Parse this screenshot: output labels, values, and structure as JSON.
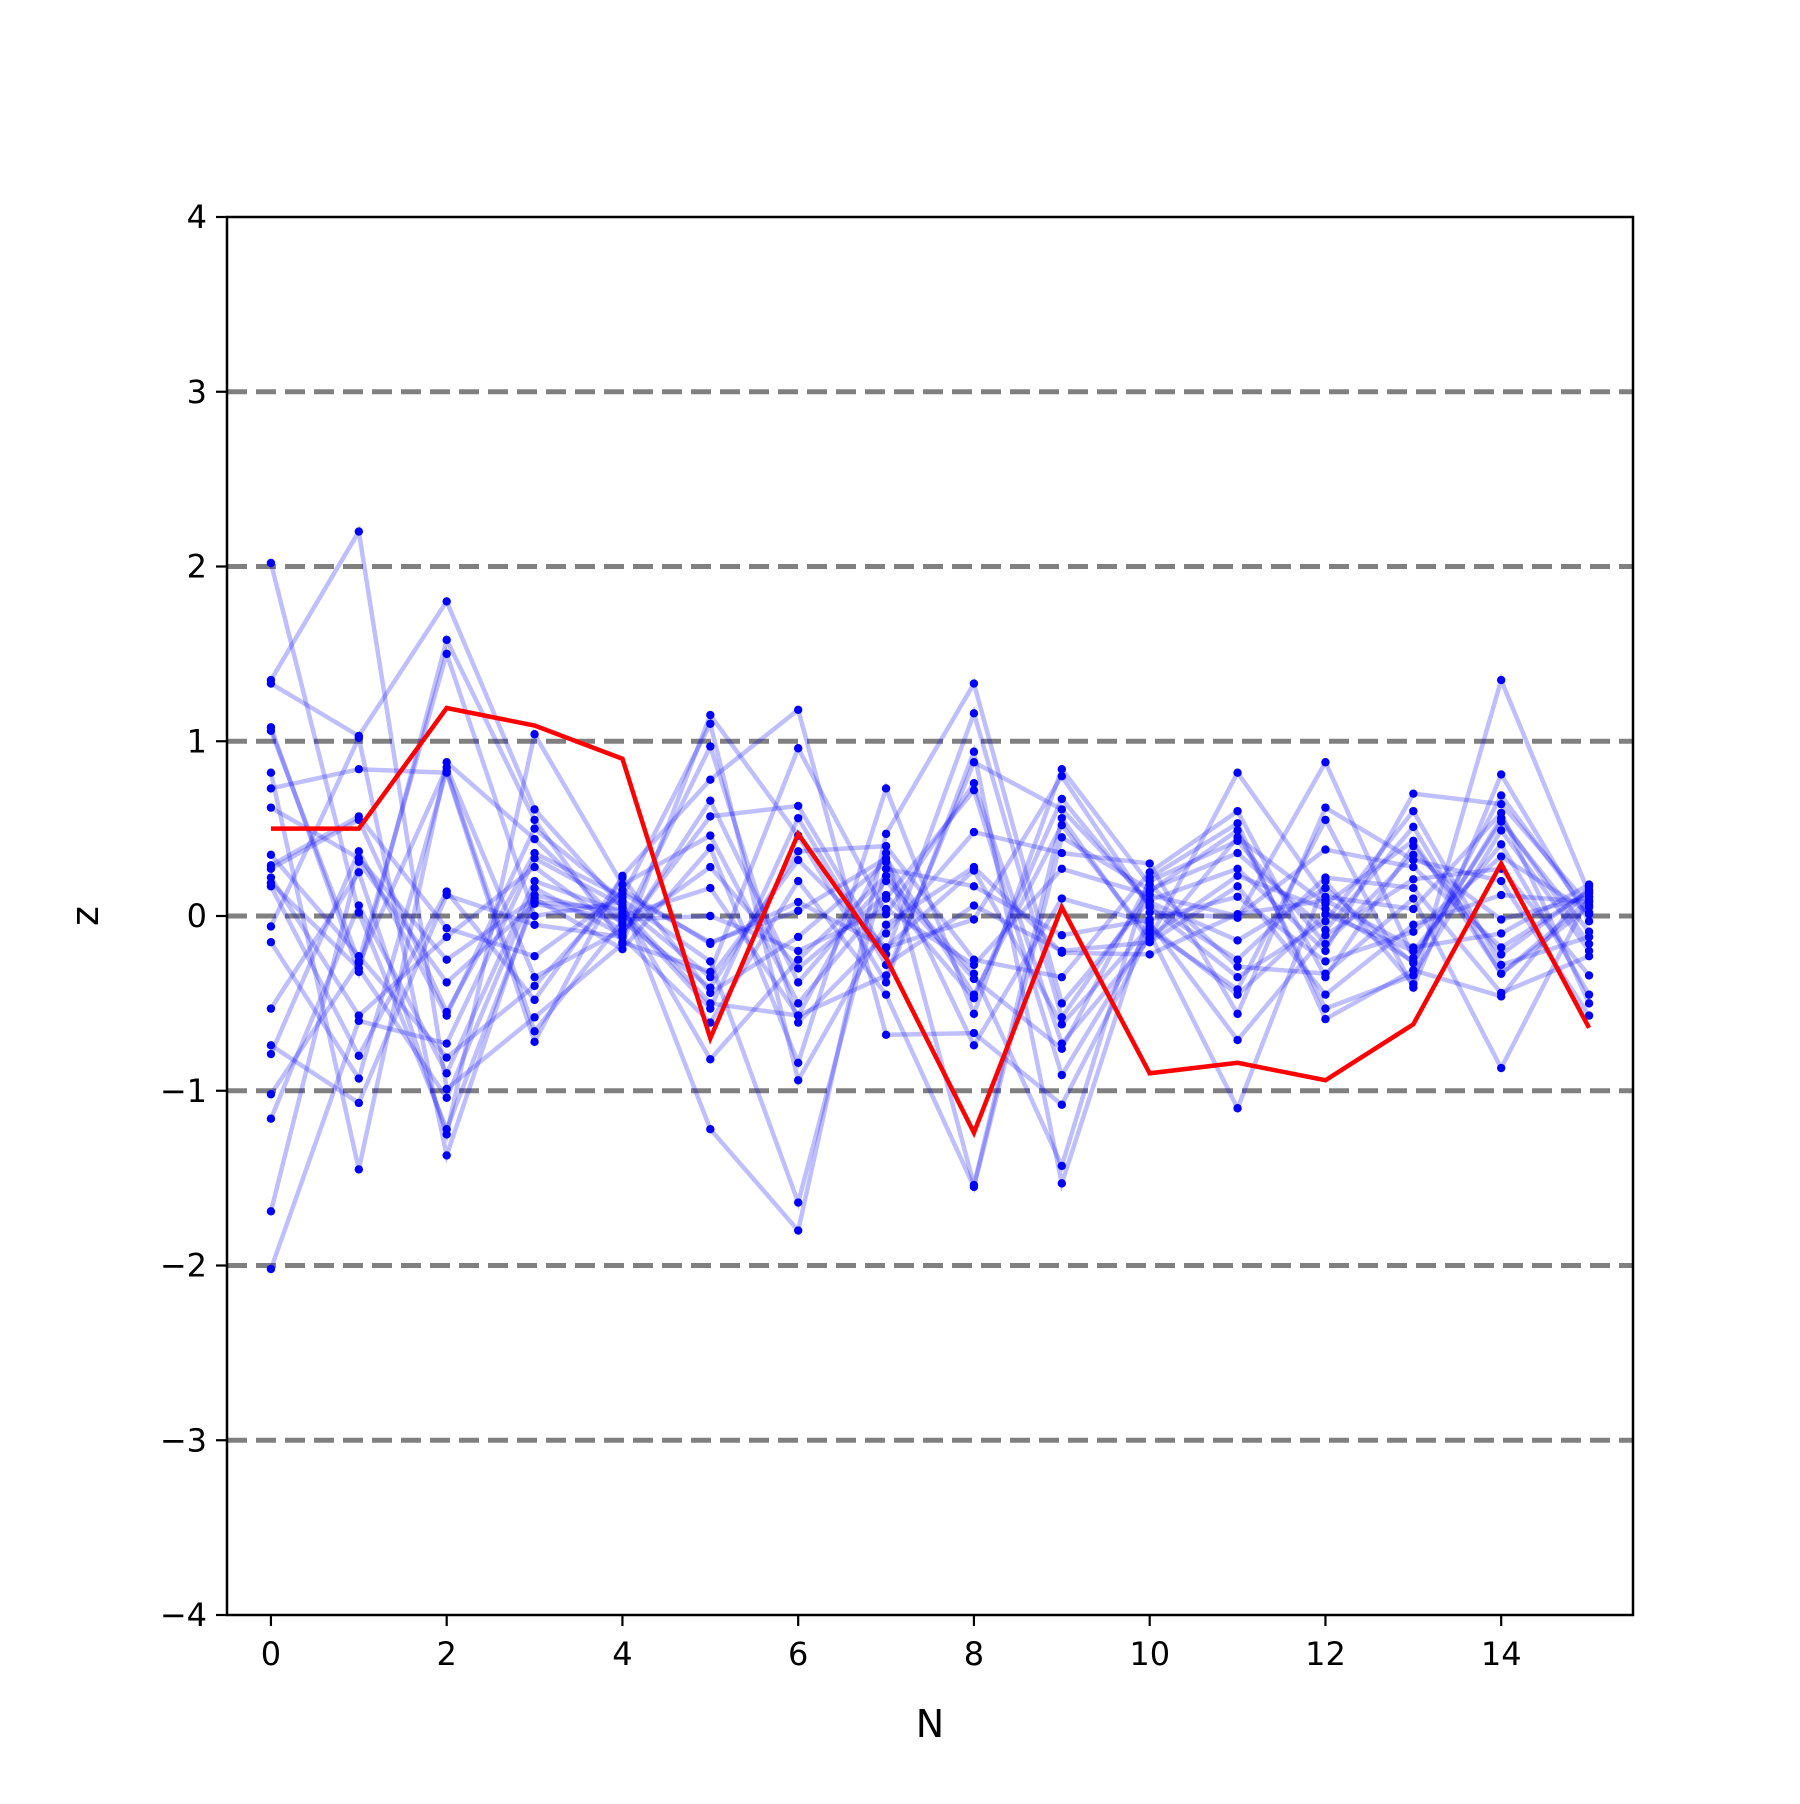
{
  "chart_data": {
    "type": "line",
    "title": "",
    "xlabel": "N",
    "ylabel": "z",
    "xlim": [
      -0.5,
      15.5
    ],
    "ylim": [
      -4,
      4
    ],
    "x_ticks": [
      0,
      2,
      4,
      6,
      8,
      10,
      12,
      14
    ],
    "x_tick_labels": [
      "0",
      "2",
      "4",
      "6",
      "8",
      "10",
      "12",
      "14"
    ],
    "y_ticks": [
      -4,
      -3,
      -2,
      -1,
      0,
      1,
      2,
      3,
      4
    ],
    "y_tick_labels": [
      "−4",
      "−3",
      "−2",
      "−1",
      "0",
      "1",
      "2",
      "3",
      "4"
    ],
    "reference_lines": [
      -3,
      -2,
      -1,
      0,
      1,
      2,
      3
    ],
    "grid": false,
    "legend": "none",
    "x": [
      0,
      1,
      2,
      3,
      4,
      5,
      6,
      7,
      8,
      9,
      10,
      11,
      12,
      13,
      14,
      15
    ],
    "highlight_series": {
      "values": [
        0.5,
        0.5,
        1.19,
        1.09,
        0.9,
        -0.7,
        0.47,
        -0.24,
        -1.24,
        0.05,
        -0.9,
        -0.84,
        -0.94,
        -0.62,
        0.3,
        -0.64
      ]
    },
    "background_series": [
      {
        "values": [
          2.02,
          0.02,
          -1.22,
          0.08,
          0.04,
          -0.5,
          -0.57,
          0.36,
          -1.54,
          0.56,
          -0.15,
          0.45,
          0.07,
          0.43,
          -0.33,
          0.05
        ]
      },
      {
        "values": [
          1.35,
          2.2,
          -0.99,
          -0.58,
          -0.16,
          1.15,
          0.46,
          -0.38,
          0.94,
          -1.53,
          0.02,
          -0.01,
          0.88,
          -0.24,
          0.54,
          -0.09
        ]
      },
      {
        "values": [
          1.33,
          1.03,
          1.8,
          0.61,
          0.05,
          -0.82,
          -0.25,
          0.23,
          -0.33,
          -1.43,
          0.22,
          0.53,
          -0.59,
          -0.31,
          -0.46,
          0.17
        ]
      },
      {
        "values": [
          1.08,
          -0.32,
          1.58,
          0.55,
          -0.15,
          -0.32,
          0.96,
          0.01,
          0.76,
          -0.73,
          -0.13,
          0.82,
          0.11,
          0.04,
          0.59,
          -0.5
        ]
      },
      {
        "values": [
          1.06,
          -0.26,
          1.5,
          0.0,
          0.08,
          -1.22,
          -1.8,
          0.47,
          1.33,
          -0.5,
          0.09,
          0.27,
          -0.2,
          0.7,
          0.64,
          0.06
        ]
      },
      {
        "values": [
          0.82,
          -1.45,
          0.88,
          0.44,
          -0.05,
          0.97,
          -0.61,
          -0.1,
          0.48,
          0.36,
          0.3,
          -0.56,
          0.62,
          0.32,
          0.2,
          -0.57
        ]
      },
      {
        "values": [
          0.73,
          0.84,
          0.82,
          -0.72,
          0.23,
          0.78,
          1.18,
          -0.68,
          -0.67,
          -1.08,
          -0.1,
          -1.1,
          0.2,
          -0.39,
          1.35,
          0.13
        ]
      },
      {
        "values": [
          0.62,
          0.33,
          -0.25,
          0.1,
          -0.19,
          0.39,
          -0.84,
          0.73,
          -0.56,
          0.84,
          0.18,
          -0.29,
          -0.33,
          0.1,
          -0.87,
          0.11
        ]
      },
      {
        "values": [
          0.35,
          -0.23,
          -0.81,
          -0.4,
          0.15,
          -0.16,
          0.08,
          -0.18,
          -0.02,
          0.8,
          0.05,
          -0.35,
          -0.03,
          0.6,
          -0.28,
          -0.12
        ]
      },
      {
        "values": [
          0.27,
          0.55,
          -0.55,
          0.36,
          0.11,
          1.1,
          -0.94,
          -0.05,
          0.28,
          -0.21,
          -0.22,
          0.01,
          0.09,
          -0.18,
          -0.1,
          0.18
        ]
      },
      {
        "values": [
          0.22,
          -0.57,
          -0.12,
          0.28,
          -0.09,
          0.57,
          0.63,
          -0.22,
          1.16,
          -0.58,
          0.14,
          0.49,
          -0.53,
          -0.34,
          0.49,
          -0.2
        ]
      },
      {
        "values": [
          0.17,
          -0.8,
          0.14,
          -0.48,
          0.22,
          -0.44,
          -0.12,
          0.31,
          -0.74,
          0.1,
          -0.04,
          -0.71,
          -0.11,
          0.21,
          0.27,
          -0.34
        ]
      },
      {
        "values": [
          -0.06,
          1.02,
          -1.37,
          0.12,
          0.0,
          0.16,
          -0.57,
          -0.34,
          0.88,
          0.61,
          0.08,
          -0.14,
          0.16,
          -0.27,
          0.69,
          0.01
        ]
      },
      {
        "values": [
          -0.15,
          -0.93,
          0.83,
          -0.66,
          -0.03,
          -0.41,
          0.37,
          0.4,
          -0.25,
          -0.35,
          0.25,
          0.6,
          -0.35,
          0.4,
          -0.22,
          0.15
        ]
      },
      {
        "values": [
          -0.53,
          0.25,
          -1.25,
          1.04,
          0.18,
          0.46,
          -0.5,
          0.1,
          0.72,
          -0.91,
          -0.08,
          -0.42,
          0.55,
          -0.41,
          0.81,
          -0.03
        ]
      },
      {
        "values": [
          -0.74,
          -1.07,
          0.12,
          -0.05,
          -0.12,
          -0.61,
          0.2,
          -0.45,
          -1.55,
          0.45,
          0.15,
          0.36,
          -0.08,
          0.51,
          -0.33,
          0.09
        ]
      },
      {
        "values": [
          -0.79,
          0.37,
          -0.57,
          0.5,
          0.09,
          -0.26,
          -1.64,
          0.27,
          0.17,
          -0.11,
          -0.02,
          0.11,
          -0.26,
          -0.09,
          0.34,
          0.02
        ]
      },
      {
        "values": [
          -1.02,
          -0.27,
          0.85,
          -0.35,
          -0.08,
          0.28,
          -0.3,
          0.12,
          -0.47,
          0.67,
          0.06,
          -0.25,
          0.22,
          0.16,
          -0.44,
          -0.23
        ]
      },
      {
        "values": [
          -1.16,
          0.06,
          -0.9,
          0.2,
          0.02,
          -0.53,
          0.56,
          -0.28,
          0.06,
          -0.2,
          -0.15,
          0.17,
          -0.45,
          -0.05,
          0.12,
          0.08
        ]
      },
      {
        "values": [
          -1.69,
          0.31,
          -0.38,
          0.07,
          -0.02,
          0.0,
          -0.2,
          0.04,
          -0.28,
          0.27,
          0.12,
          0.0,
          0.38,
          0.28,
          -0.18,
          0.14
        ]
      },
      {
        "values": [
          -2.02,
          -0.6,
          -0.73,
          0.33,
          0.06,
          -0.35,
          0.32,
          -0.18,
          0.26,
          -0.62,
          -0.06,
          -0.45,
          0.01,
          -0.2,
          0.41,
          -0.45
        ]
      },
      {
        "values": [
          0.19,
          -0.3,
          -1.04,
          0.16,
          -0.11,
          0.66,
          -0.38,
          0.2,
          -0.36,
          -0.76,
          0.2,
          0.43,
          -0.16,
          0.35,
          -0.02,
          0.11
        ]
      },
      {
        "values": [
          0.29,
          0.57,
          -0.07,
          -0.23,
          0.13,
          -0.15,
          0.03,
          0.33,
          -0.45,
          0.52,
          -0.12,
          0.23,
          0.04,
          -0.26,
          0.56,
          -0.16
        ]
      }
    ],
    "colors": {
      "highlight": "#ff0000",
      "background_line": "#0000ff",
      "points": "#0000ff",
      "reference_line": "#808080",
      "axes": "#000000"
    }
  }
}
